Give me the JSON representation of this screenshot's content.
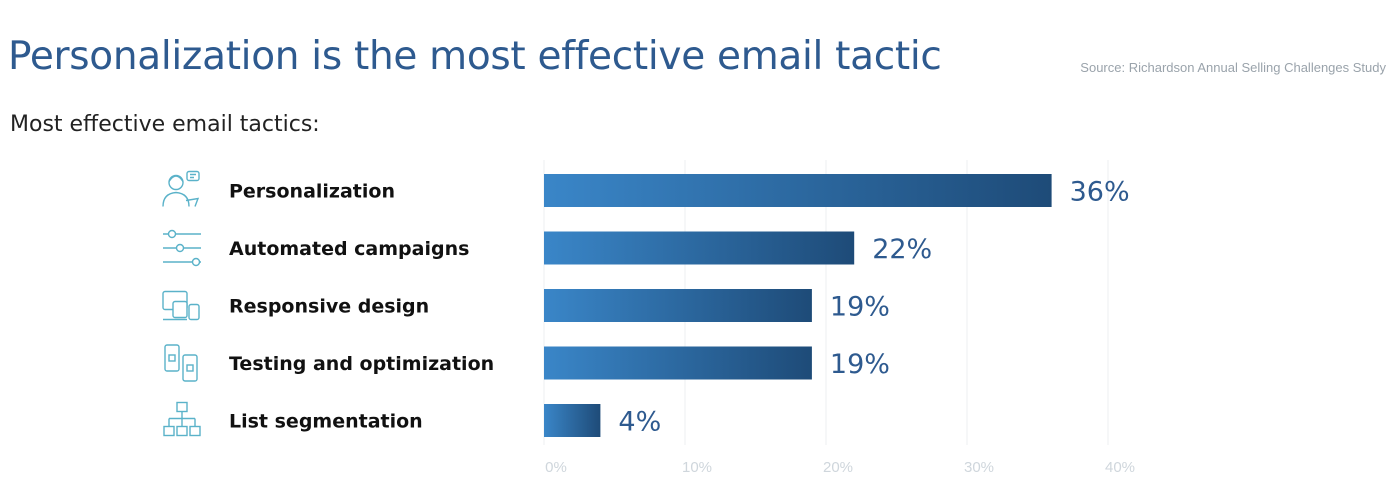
{
  "header": {
    "title": "Personalization is the most effective email tactic",
    "source": "Source: Richardson Annual Selling Challenges Study",
    "subtitle": "Most effective email tactics:"
  },
  "colors": {
    "bar_start": "#3a86c8",
    "bar_end": "#1e4b78",
    "value_text": "#2e5a8f",
    "icon": "#5ab2c9",
    "grid": "#eceff2"
  },
  "chart_data": {
    "type": "bar",
    "orientation": "horizontal",
    "categories": [
      "Personalization",
      "Automated campaigns",
      "Responsive design",
      "Testing and optimization",
      "List segmentation"
    ],
    "values": [
      36,
      22,
      19,
      19,
      4
    ],
    "value_labels": [
      "36%",
      "22%",
      "19%",
      "19%",
      "4%"
    ],
    "icons": [
      "person-chat-icon",
      "sliders-icon",
      "devices-icon",
      "phones-icon",
      "hierarchy-icon"
    ],
    "xlim": [
      0,
      40
    ],
    "xticks": [
      0,
      10,
      20,
      30,
      40
    ],
    "xtick_labels": [
      "0%",
      "10%",
      "20%",
      "30%",
      "40%"
    ],
    "grid": true,
    "title": "Personalization is the most effective email tactic",
    "xlabel": "",
    "ylabel": ""
  }
}
